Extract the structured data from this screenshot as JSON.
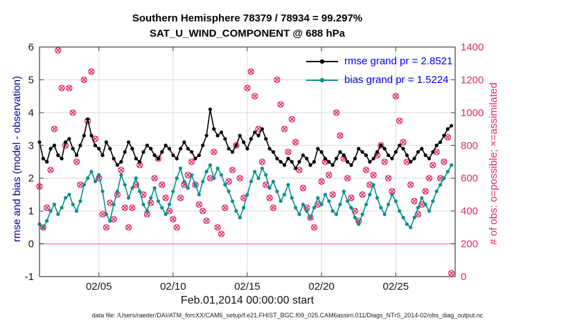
{
  "title_line1": "Southern Hemisphere 78379 / 78934 = 99.297%",
  "title_line2": "SAT_U_WIND_COMPONENT @ 688 hPa",
  "axes": {
    "left_label": "rmse and bias (model - observation)",
    "right_label": "# of obs: o=possible; ×=assimilated",
    "x_label": "Feb.01,2014 00:00:00 start",
    "left_ticks": [
      -1,
      0,
      1,
      2,
      3,
      4,
      5,
      6
    ],
    "right_ticks": [
      0,
      200,
      400,
      600,
      800,
      1000,
      1200,
      1400
    ],
    "x_ticks": [
      {
        "day": 4,
        "label": "02/05"
      },
      {
        "day": 9,
        "label": "02/10"
      },
      {
        "day": 14,
        "label": "02/15"
      },
      {
        "day": 19,
        "label": "02/20"
      },
      {
        "day": 24,
        "label": "02/25"
      }
    ]
  },
  "legend": {
    "items": [
      {
        "label": "rmse grand pr = 2.8521",
        "color": "#000000"
      },
      {
        "label": "bias grand pr = 1.5224",
        "color": "#0b8f8f"
      }
    ],
    "text_color": "#0000ee"
  },
  "footer": "data file: /Users/raeder/DAI/ATM_forcXX/CAM6_setup/f.e21.FHIST_BGC.f09_025.CAM6assim.011/Diags_NTrS_2014-02/obs_diag_output.nc",
  "colors": {
    "rmse": "#000000",
    "bias": "#0b8f8f",
    "obs": "#df2a6b",
    "zero_line": "#ef8fa8",
    "grid": "#d9d9d9",
    "box": "#3f3f3f",
    "tick_text": "#171717",
    "legend_text": "#0000ee",
    "left_label_text": "#000099"
  },
  "chart_data": {
    "type": "line",
    "title": "Southern Hemisphere 78379 / 78934 = 99.297% | SAT_U_WIND_COMPONENT @ 688 hPa",
    "x_axis": "time, 6-hourly bins starting Feb.01,2014 00:00:00",
    "x_start_day": 0,
    "x_step_days": 0.25,
    "x_range": [
      0,
      28
    ],
    "left_ylim": [
      -1,
      6
    ],
    "right_ylim": [
      0,
      1400
    ],
    "grid": true,
    "legend_position": "top-right-inside",
    "series": [
      {
        "name": "rmse",
        "axis": "left",
        "color": "#000000",
        "marker": "filled-circle",
        "grand_prior": 2.8521,
        "values": [
          3.1,
          2.6,
          2.5,
          2.9,
          3.0,
          2.7,
          2.6,
          3.1,
          3.2,
          2.9,
          2.7,
          3.0,
          3.3,
          3.8,
          3.3,
          3.0,
          2.9,
          2.7,
          3.1,
          2.9,
          2.6,
          2.4,
          2.5,
          2.8,
          3.1,
          2.9,
          2.6,
          2.5,
          2.8,
          3.0,
          2.9,
          2.7,
          2.6,
          2.8,
          3.0,
          2.9,
          2.7,
          2.6,
          2.9,
          3.1,
          2.9,
          2.8,
          2.6,
          2.7,
          3.0,
          3.3,
          4.1,
          3.5,
          3.3,
          3.4,
          3.2,
          2.9,
          2.8,
          3.0,
          3.3,
          3.1,
          2.9,
          3.2,
          3.4,
          3.3,
          3.5,
          3.2,
          2.9,
          2.8,
          2.6,
          2.5,
          2.4,
          2.6,
          2.5,
          2.3,
          2.5,
          2.7,
          2.6,
          2.4,
          2.5,
          2.9,
          2.8,
          2.6,
          2.5,
          2.4,
          2.6,
          2.8,
          2.7,
          2.5,
          2.4,
          2.6,
          2.9,
          2.8,
          2.7,
          2.5,
          2.6,
          2.8,
          3.0,
          2.9,
          2.7,
          2.6,
          2.8,
          3.0,
          2.9,
          2.7,
          2.5,
          2.6,
          2.8,
          2.9,
          2.7,
          2.6,
          2.8,
          3.0,
          3.1,
          3.3,
          3.5,
          3.6
        ]
      },
      {
        "name": "bias",
        "axis": "left",
        "color": "#0b8f8f",
        "marker": "filled-circle",
        "grand_prior": 1.5224,
        "values": [
          0.6,
          0.5,
          0.7,
          1.0,
          1.2,
          0.9,
          1.1,
          1.4,
          1.5,
          1.2,
          1.0,
          1.3,
          1.8,
          2.0,
          2.2,
          1.9,
          2.1,
          1.6,
          0.9,
          0.7,
          1.2,
          1.6,
          2.1,
          1.8,
          1.4,
          1.7,
          2.0,
          1.6,
          1.2,
          1.0,
          1.4,
          1.7,
          1.3,
          1.1,
          0.9,
          1.2,
          1.6,
          2.0,
          2.3,
          1.9,
          1.7,
          2.1,
          1.8,
          1.5,
          1.9,
          2.2,
          2.4,
          2.0,
          2.3,
          2.1,
          1.8,
          1.6,
          1.3,
          1.0,
          0.8,
          1.1,
          1.5,
          1.9,
          2.2,
          2.0,
          2.3,
          2.1,
          1.7,
          1.9,
          1.6,
          1.3,
          1.5,
          1.8,
          1.4,
          1.1,
          0.9,
          1.2,
          1.0,
          0.8,
          1.1,
          1.4,
          1.2,
          1.5,
          1.3,
          1.0,
          0.9,
          1.2,
          1.6,
          1.3,
          1.1,
          0.8,
          0.6,
          0.9,
          1.2,
          1.5,
          1.8,
          1.4,
          1.1,
          0.9,
          1.2,
          1.5,
          1.3,
          1.0,
          0.8,
          0.6,
          0.5,
          0.8,
          1.1,
          1.4,
          1.2,
          1.0,
          1.3,
          1.6,
          1.8,
          2.0,
          2.2,
          2.4
        ]
      },
      {
        "name": "obs_possible",
        "axis": "right",
        "color": "#df2a6b",
        "marker": "open-circle",
        "values": [
          550,
          300,
          420,
          650,
          900,
          1380,
          1150,
          800,
          1150,
          1000,
          700,
          560,
          1200,
          950,
          1250,
          840,
          600,
          380,
          300,
          450,
          350,
          500,
          650,
          420,
          300,
          420,
          560,
          680,
          500,
          380,
          450,
          600,
          720,
          560,
          480,
          400,
          350,
          300,
          480,
          560,
          620,
          700,
          560,
          440,
          400,
          340,
          600,
          760,
          300,
          260,
          420,
          580,
          650,
          800,
          600,
          480,
          1150,
          1250,
          1100,
          900,
          700,
          560,
          480,
          420,
          1200,
          1050,
          900,
          760,
          960,
          820,
          650,
          540,
          420,
          360,
          300,
          440,
          580,
          700,
          620,
          500,
          1000,
          860,
          720,
          600,
          480,
          400,
          340,
          500,
          650,
          560,
          620,
          740,
          800,
          700,
          600,
          520,
          1100,
          950,
          820,
          700,
          560,
          460,
          380,
          440,
          520,
          600,
          680,
          760,
          600,
          700,
          850,
          20
        ]
      },
      {
        "name": "obs_assimilated",
        "axis": "right",
        "color": "#df2a6b",
        "marker": "x",
        "values_same_as": "obs_possible",
        "note": "coincides with possible: 78379/78934 = 99.297% assimilated"
      }
    ],
    "zero_line": {
      "y": 0,
      "axis": "left",
      "color": "#ef8fa8"
    }
  }
}
